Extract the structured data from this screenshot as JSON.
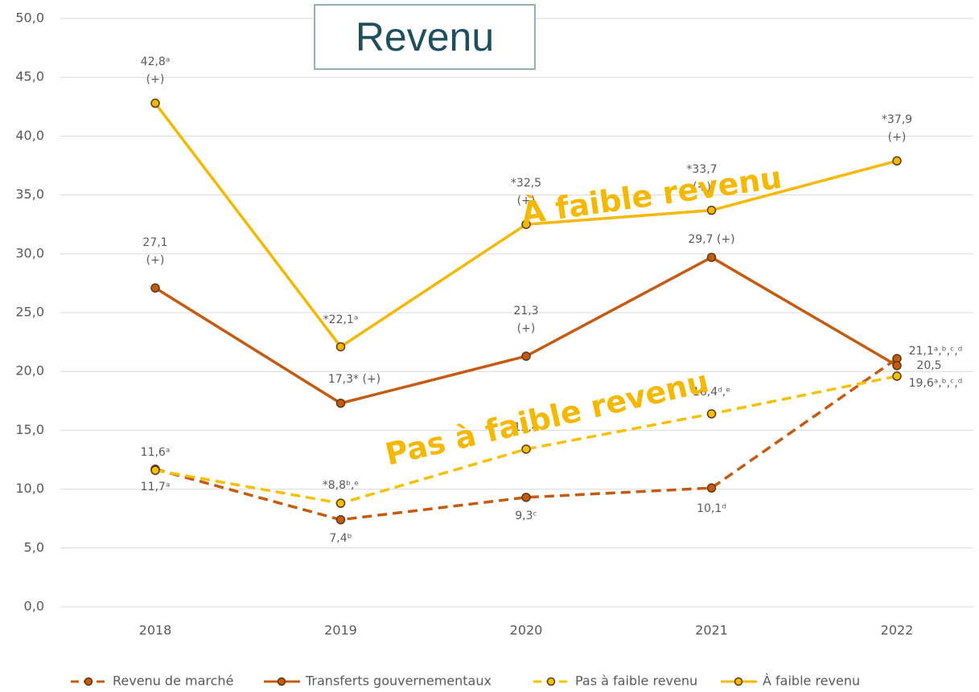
{
  "chart_data": {
    "type": "line",
    "title": "Revenu",
    "annotations": [
      "À faible revenu",
      "Pas à faible revenu"
    ],
    "annotation_color": "#f5b800",
    "categories": [
      "2018",
      "2019",
      "2020",
      "2021",
      "2022"
    ],
    "series": [
      {
        "name": "Revenu de marché",
        "color": "#c55a11",
        "dashed": true,
        "values": [
          11.7,
          7.4,
          9.3,
          10.1,
          21.1
        ],
        "value_labels": [
          "11,7ᵃ",
          "7,4ᵇ",
          "9,3ᶜ",
          "10,1ᵈ",
          "21,1ᵃ,ᵇ,ᶜ,ᵈ"
        ]
      },
      {
        "name": "Transferts gouvernementaux",
        "color": "#c55a11",
        "dashed": false,
        "values": [
          27.1,
          17.3,
          21.3,
          29.7,
          20.5
        ],
        "value_labels": [
          "27,1\n(+)",
          "17,3* (+)",
          "21,3\n(+)",
          "29,7 (+)",
          "20,5"
        ]
      },
      {
        "name": "Pas à faible revenu",
        "color": "#f5c000",
        "dashed": true,
        "values": [
          11.6,
          8.8,
          13.4,
          16.4,
          19.6
        ],
        "value_labels": [
          "11,6ᵃ",
          "*8,8ᵇ,ᵉ",
          "13,4",
          "16,4ᵈ,ᵉ",
          "19,6ᵃ,ᵇ,ᶜ,ᵈ"
        ]
      },
      {
        "name": "À faible revenu",
        "color": "#f5b800",
        "dashed": false,
        "values": [
          42.8,
          22.1,
          32.5,
          33.7,
          37.9
        ],
        "value_labels": [
          "42,8ᵃ\n(+)",
          "*22,1ᵃ",
          "*32,5\n(+)",
          "*33,7\n(+)",
          "*37,9\n(+)"
        ]
      }
    ],
    "ylim": [
      0,
      50
    ],
    "yticks": [
      {
        "value": 0,
        "label": "0,0"
      },
      {
        "value": 5,
        "label": "5,0"
      },
      {
        "value": 10,
        "label": "10,0"
      },
      {
        "value": 15,
        "label": "15,0"
      },
      {
        "value": 20,
        "label": "20,0"
      },
      {
        "value": 25,
        "label": "25,0"
      },
      {
        "value": 30,
        "label": "30,0"
      },
      {
        "value": 35,
        "label": "35,0"
      },
      {
        "value": 40,
        "label": "40,0"
      },
      {
        "value": 45,
        "label": "45,0"
      },
      {
        "value": 50,
        "label": "50,0"
      }
    ],
    "grid": true,
    "legend": "bottom"
  }
}
